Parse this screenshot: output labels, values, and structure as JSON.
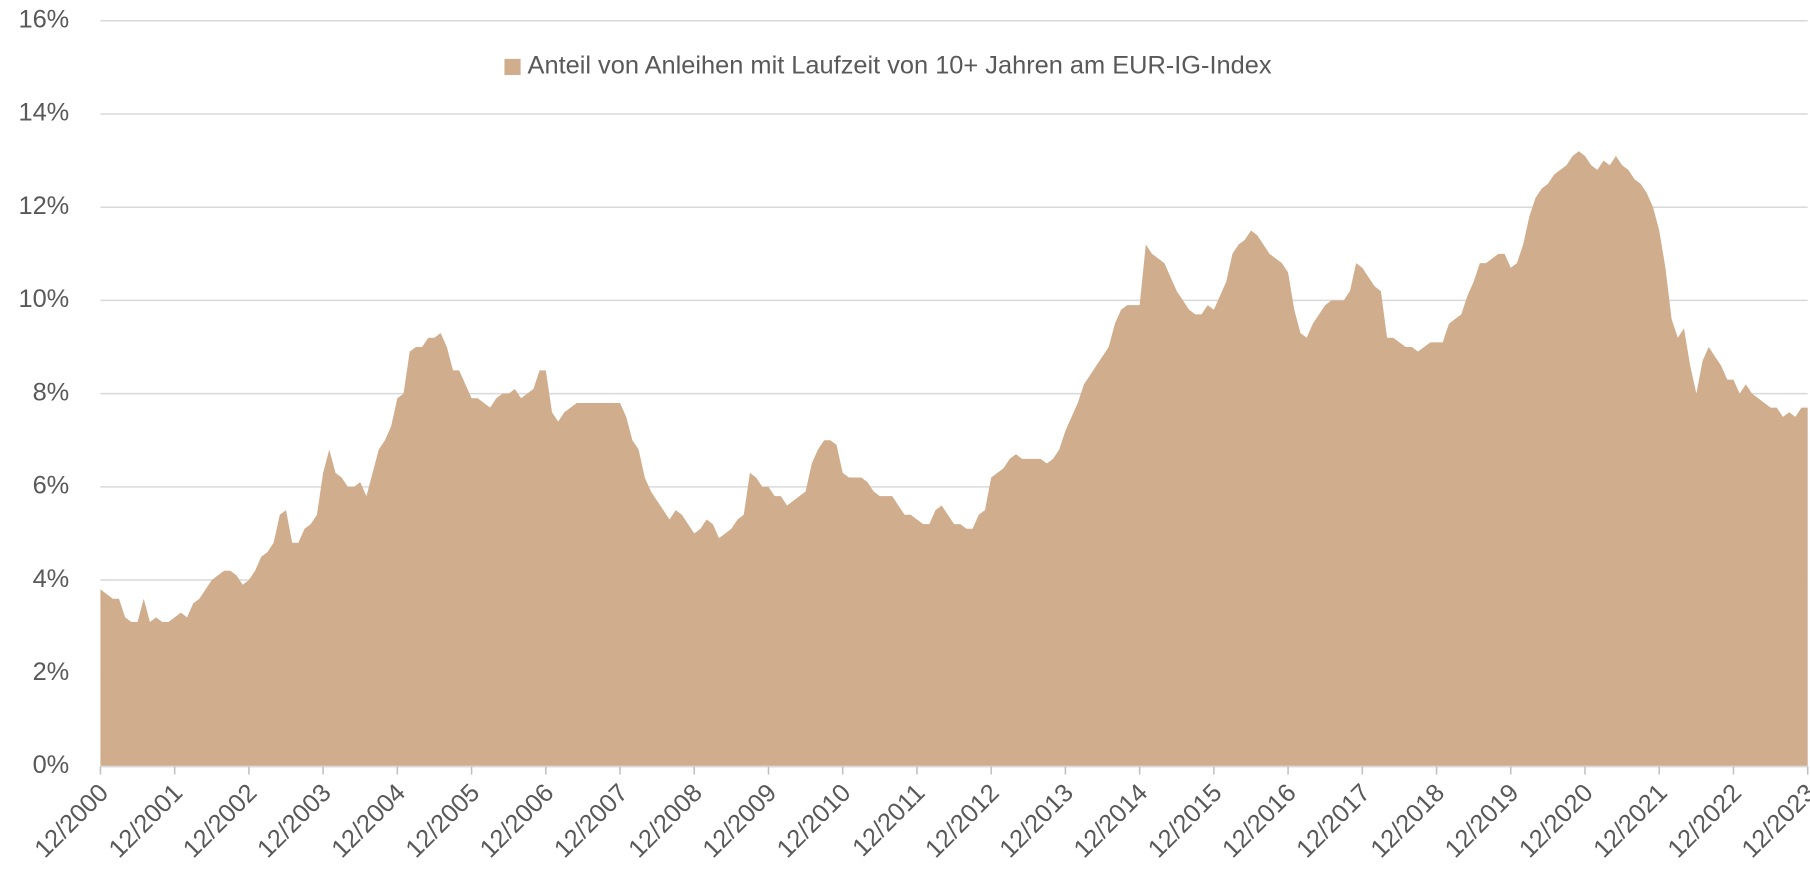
{
  "chart_data": {
    "type": "area",
    "categories": [
      "12/2000",
      null,
      null,
      null,
      null,
      null,
      null,
      null,
      null,
      null,
      null,
      null,
      "12/2001",
      null,
      null,
      null,
      null,
      null,
      null,
      null,
      null,
      null,
      null,
      null,
      "12/2002",
      null,
      null,
      null,
      null,
      null,
      null,
      null,
      null,
      null,
      null,
      null,
      "12/2003",
      null,
      null,
      null,
      null,
      null,
      null,
      null,
      null,
      null,
      null,
      null,
      "12/2004",
      null,
      null,
      null,
      null,
      null,
      null,
      null,
      null,
      null,
      null,
      null,
      "12/2005",
      null,
      null,
      null,
      null,
      null,
      null,
      null,
      null,
      null,
      null,
      null,
      "12/2006",
      null,
      null,
      null,
      null,
      null,
      null,
      null,
      null,
      null,
      null,
      null,
      "12/2007",
      null,
      null,
      null,
      null,
      null,
      null,
      null,
      null,
      null,
      null,
      null,
      "12/2008",
      null,
      null,
      null,
      null,
      null,
      null,
      null,
      null,
      null,
      null,
      null,
      "12/2009",
      null,
      null,
      null,
      null,
      null,
      null,
      null,
      null,
      null,
      null,
      null,
      "12/2010",
      null,
      null,
      null,
      null,
      null,
      null,
      null,
      null,
      null,
      null,
      null,
      "12/2011",
      null,
      null,
      null,
      null,
      null,
      null,
      null,
      null,
      null,
      null,
      null,
      "12/2012",
      null,
      null,
      null,
      null,
      null,
      null,
      null,
      null,
      null,
      null,
      null,
      "12/2013",
      null,
      null,
      null,
      null,
      null,
      null,
      null,
      null,
      null,
      null,
      null,
      "12/2014",
      null,
      null,
      null,
      null,
      null,
      null,
      null,
      null,
      null,
      null,
      null,
      "12/2015",
      null,
      null,
      null,
      null,
      null,
      null,
      null,
      null,
      null,
      null,
      null,
      "12/2016",
      null,
      null,
      null,
      null,
      null,
      null,
      null,
      null,
      null,
      null,
      null,
      "12/2017",
      null,
      null,
      null,
      null,
      null,
      null,
      null,
      null,
      null,
      null,
      null,
      "12/2018",
      null,
      null,
      null,
      null,
      null,
      null,
      null,
      null,
      null,
      null,
      null,
      "12/2019",
      null,
      null,
      null,
      null,
      null,
      null,
      null,
      null,
      null,
      null,
      null,
      "12/2020",
      null,
      null,
      null,
      null,
      null,
      null,
      null,
      null,
      null,
      null,
      null,
      "12/2021",
      null,
      null,
      null,
      null,
      null,
      null,
      null,
      null,
      null,
      null,
      null,
      "12/2022",
      null,
      null,
      null,
      null,
      null,
      null,
      null,
      null,
      null,
      null,
      null,
      "12/2023"
    ],
    "series": [
      {
        "name": "Anteil von Anleihen mit Laufzeit von 10+ Jahren am EUR-IG-Index",
        "color": "#d0ad8c",
        "values": [
          3.8,
          3.7,
          3.6,
          3.6,
          3.2,
          3.1,
          3.1,
          3.6,
          3.1,
          3.2,
          3.1,
          3.1,
          3.2,
          3.3,
          3.2,
          3.5,
          3.6,
          3.8,
          4.0,
          4.1,
          4.2,
          4.2,
          4.1,
          3.9,
          4.0,
          4.2,
          4.5,
          4.6,
          4.8,
          5.4,
          5.5,
          4.8,
          4.8,
          5.1,
          5.2,
          5.4,
          6.3,
          6.8,
          6.3,
          6.2,
          6.0,
          6.0,
          6.1,
          5.8,
          6.3,
          6.8,
          7.0,
          7.3,
          7.9,
          8.0,
          8.9,
          9.0,
          9.0,
          9.2,
          9.2,
          9.3,
          9.0,
          8.5,
          8.5,
          8.2,
          7.9,
          7.9,
          7.8,
          7.7,
          7.9,
          8.0,
          8.0,
          8.1,
          7.9,
          8.0,
          8.1,
          8.5,
          8.5,
          7.6,
          7.4,
          7.6,
          7.7,
          7.8,
          7.8,
          7.8,
          7.8,
          7.8,
          7.8,
          7.8,
          7.8,
          7.5,
          7.0,
          6.8,
          6.2,
          5.9,
          5.7,
          5.5,
          5.3,
          5.5,
          5.4,
          5.2,
          5.0,
          5.1,
          5.3,
          5.2,
          4.9,
          5.0,
          5.1,
          5.3,
          5.4,
          6.3,
          6.2,
          6.0,
          6.0,
          5.8,
          5.8,
          5.6,
          5.7,
          5.8,
          5.9,
          6.5,
          6.8,
          7.0,
          7.0,
          6.9,
          6.3,
          6.2,
          6.2,
          6.2,
          6.1,
          5.9,
          5.8,
          5.8,
          5.8,
          5.6,
          5.4,
          5.4,
          5.3,
          5.2,
          5.2,
          5.5,
          5.6,
          5.4,
          5.2,
          5.2,
          5.1,
          5.1,
          5.4,
          5.5,
          6.2,
          6.3,
          6.4,
          6.6,
          6.7,
          6.6,
          6.6,
          6.6,
          6.6,
          6.5,
          6.6,
          6.8,
          7.2,
          7.5,
          7.8,
          8.2,
          8.4,
          8.6,
          8.8,
          9.0,
          9.5,
          9.8,
          9.9,
          9.9,
          9.9,
          11.2,
          11.0,
          10.9,
          10.8,
          10.5,
          10.2,
          10.0,
          9.8,
          9.7,
          9.7,
          9.9,
          9.8,
          10.1,
          10.4,
          11.0,
          11.2,
          11.3,
          11.5,
          11.4,
          11.2,
          11.0,
          10.9,
          10.8,
          10.6,
          9.8,
          9.3,
          9.2,
          9.5,
          9.7,
          9.9,
          10.0,
          10.0,
          10.0,
          10.2,
          10.8,
          10.7,
          10.5,
          10.3,
          10.2,
          9.2,
          9.2,
          9.1,
          9.0,
          9.0,
          8.9,
          9.0,
          9.1,
          9.1,
          9.1,
          9.5,
          9.6,
          9.7,
          10.1,
          10.4,
          10.8,
          10.8,
          10.9,
          11.0,
          11.0,
          10.7,
          10.8,
          11.2,
          11.8,
          12.2,
          12.4,
          12.5,
          12.7,
          12.8,
          12.9,
          13.1,
          13.2,
          13.1,
          12.9,
          12.8,
          13.0,
          12.9,
          13.1,
          12.9,
          12.8,
          12.6,
          12.5,
          12.3,
          12.0,
          11.5,
          10.7,
          9.6,
          9.2,
          9.4,
          8.6,
          8.0,
          8.7,
          9.0,
          8.8,
          8.6,
          8.3,
          8.3,
          8.0,
          8.2,
          8.0,
          7.9,
          7.8,
          7.7,
          7.7,
          7.5,
          7.6,
          7.5,
          7.7,
          7.7
        ]
      }
    ],
    "ylim": [
      0,
      16
    ],
    "yticks": [
      {
        "value": 0,
        "label": "0%"
      },
      {
        "value": 2,
        "label": "2%"
      },
      {
        "value": 4,
        "label": "4%"
      },
      {
        "value": 6,
        "label": "6%"
      },
      {
        "value": 8,
        "label": "8%"
      },
      {
        "value": 10,
        "label": "10%"
      },
      {
        "value": 12,
        "label": "12%"
      },
      {
        "value": 14,
        "label": "14%"
      },
      {
        "value": 16,
        "label": "16%"
      }
    ],
    "grid": true,
    "legend": "top"
  }
}
